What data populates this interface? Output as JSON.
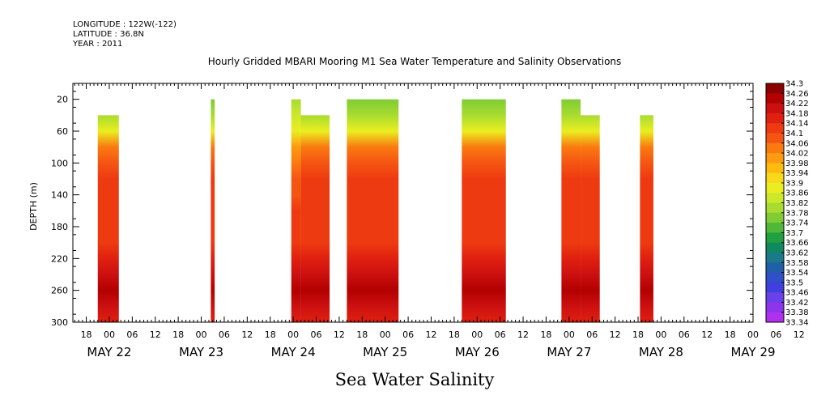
{
  "header": {
    "longitude": "LONGITUDE : 122W(-122)",
    "latitude": "LATITUDE : 36.8N",
    "year": "YEAR : 2011"
  },
  "footer_title": "Sea Water Salinity",
  "chart_data": {
    "type": "heatmap",
    "title": "Hourly Gridded MBARI Mooring M1 Sea Water Temperature and Salinity Observations",
    "ylabel": "DEPTH (m)",
    "xlabel": "",
    "y_axis": {
      "range": [
        300,
        0
      ],
      "inverted": true,
      "tick_values": [
        20,
        60,
        100,
        140,
        180,
        220,
        260,
        300
      ],
      "tick_labels": [
        "20",
        "60",
        "100",
        "140",
        "180",
        "220",
        "260",
        "300"
      ]
    },
    "x_axis": {
      "range_hours": [
        -9.5,
        168
      ],
      "start": "2011-05-21 14:30",
      "hour_tick_labels": [
        "18",
        "00",
        "06",
        "12",
        "18",
        "00",
        "06",
        "12",
        "18",
        "00",
        "06",
        "12",
        "18",
        "00",
        "06",
        "12",
        "18",
        "00",
        "06",
        "12",
        "18",
        "00",
        "06",
        "12",
        "18",
        "00",
        "06",
        "12",
        "18",
        "00",
        "06",
        "12"
      ],
      "hour_tick_times": [
        -6,
        0,
        6,
        12,
        18,
        24,
        30,
        36,
        42,
        48,
        54,
        60,
        66,
        72,
        78,
        84,
        90,
        96,
        102,
        108,
        114,
        120,
        126,
        132,
        138,
        144,
        150,
        156,
        162,
        168,
        174,
        180
      ],
      "date_labels": [
        "MAY 22",
        "MAY 23",
        "MAY 24",
        "MAY 25",
        "MAY 26",
        "MAY 27",
        "MAY 28",
        "MAY 29"
      ],
      "date_label_times": [
        0,
        24,
        48,
        72,
        96,
        120,
        144,
        168
      ]
    },
    "colorbar": {
      "levels": [
        "34.3",
        "34.26",
        "34.22",
        "34.18",
        "34.14",
        "34.1",
        "34.06",
        "34.02",
        "33.98",
        "33.94",
        "33.9",
        "33.86",
        "33.82",
        "33.78",
        "33.74",
        "33.7",
        "33.66",
        "33.62",
        "33.58",
        "33.54",
        "33.5",
        "33.46",
        "33.42",
        "33.38",
        "33.34"
      ],
      "colors": [
        "#8b0000",
        "#b30000",
        "#cc1010",
        "#e02010",
        "#ee3a10",
        "#f55512",
        "#fa7a10",
        "#fd9a10",
        "#fdbb10",
        "#f8d818",
        "#eaee20",
        "#cde82a",
        "#a8dc30",
        "#7fcc35",
        "#4fb83a",
        "#20a040",
        "#108860",
        "#1a7a8a",
        "#2060a8",
        "#3050c8",
        "#4040e0",
        "#6a40e8",
        "#8c35ec",
        "#b030f0",
        "#d02cf4"
      ]
    },
    "depth_levels": [
      20,
      40,
      60,
      80,
      100,
      120,
      140,
      160,
      180,
      200,
      220,
      240,
      260,
      280,
      300
    ],
    "profiles": {
      "edge": [
        33.82,
        33.86,
        33.92,
        34.04,
        34.08,
        34.12,
        34.13,
        34.14,
        34.15,
        34.16,
        34.18,
        34.22,
        34.27,
        34.22,
        34.2
      ],
      "center": [
        33.78,
        33.82,
        33.9,
        34.06,
        34.1,
        34.14,
        34.15,
        34.16,
        34.17,
        34.17,
        34.19,
        34.23,
        34.28,
        34.23,
        34.21
      ]
    },
    "series": [
      {
        "name": "block-1",
        "start": -3,
        "end": 2.5,
        "segments": [
          {
            "x0": -3,
            "x1": 2.5,
            "top": 40
          }
        ]
      },
      {
        "name": "block-2",
        "start": 26.5,
        "end": 27.5,
        "segments": [
          {
            "x0": 26.5,
            "x1": 27.5,
            "top": 20
          }
        ]
      },
      {
        "name": "block-3",
        "start": 47.5,
        "end": 57.5,
        "segments": [
          {
            "x0": 47.5,
            "x1": 50,
            "top": 20
          },
          {
            "x0": 50,
            "x1": 57.5,
            "top": 40
          }
        ]
      },
      {
        "name": "block-4",
        "start": 62,
        "end": 75.5,
        "segments": [
          {
            "x0": 62,
            "x1": 75.5,
            "top": 20
          }
        ]
      },
      {
        "name": "block-5",
        "start": 92,
        "end": 103.5,
        "segments": [
          {
            "x0": 92,
            "x1": 103.5,
            "top": 20
          }
        ]
      },
      {
        "name": "block-6",
        "start": 118,
        "end": 128,
        "segments": [
          {
            "x0": 118,
            "x1": 123,
            "top": 20
          },
          {
            "x0": 123,
            "x1": 128,
            "top": 40
          }
        ]
      },
      {
        "name": "block-7",
        "start": 138.5,
        "end": 142,
        "segments": [
          {
            "x0": 138.5,
            "x1": 142,
            "top": 40
          }
        ]
      }
    ]
  }
}
